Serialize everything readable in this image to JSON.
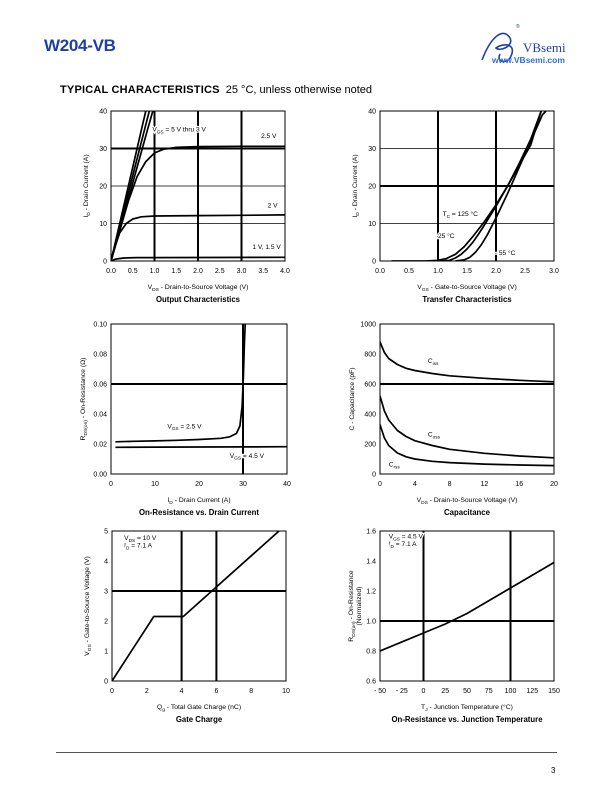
{
  "header": {
    "part_number": "W204-VB",
    "logo_text": "VBsemi",
    "logo_registered": "®",
    "website": "www.VBsemi.com"
  },
  "section": {
    "title": "TYPICAL CHARACTERISTICS",
    "subtitle": "25 °C, unless otherwise noted"
  },
  "page_number": "3",
  "chart_data": [
    {
      "id": "output",
      "type": "line",
      "title": "Output Characteristics",
      "xlabel": {
        "main": "V",
        "sub": "DS",
        "rest": " - Drain-to-Source Voltage (V)"
      },
      "ylabel": {
        "main": "I",
        "sub": "D",
        "rest": " - Drain Current (A)"
      },
      "xlim": [
        0,
        4
      ],
      "ylim": [
        0,
        40
      ],
      "xticks": [
        0,
        0.5,
        1,
        1.5,
        2,
        2.5,
        3,
        3.5,
        4
      ],
      "xtick_labels": [
        "0.0",
        "0.5",
        "1.0",
        "1.5",
        "2.0",
        "2.5",
        "3.0",
        "3.5",
        "4.0"
      ],
      "yticks": [
        0,
        10,
        20,
        30,
        40
      ],
      "ytick_labels": [
        "0",
        "10",
        "20",
        "30",
        "40"
      ],
      "series": [
        {
          "x": [
            0,
            0.2,
            0.4,
            0.6,
            0.7,
            0.8
          ],
          "y": [
            0,
            10,
            20,
            30,
            35,
            40
          ]
        },
        {
          "x": [
            0,
            0.22,
            0.44,
            0.66,
            0.77,
            0.88
          ],
          "y": [
            0,
            10,
            20,
            30,
            35,
            40
          ]
        },
        {
          "x": [
            0,
            0.24,
            0.48,
            0.72,
            0.84,
            0.96
          ],
          "y": [
            0,
            10,
            20,
            30,
            35,
            40
          ]
        },
        {
          "x": [
            0,
            0.2,
            0.4,
            0.6,
            0.8,
            1.0,
            1.2,
            1.5,
            2.0,
            3.0,
            4.0
          ],
          "y": [
            0,
            8,
            16,
            22.5,
            26.5,
            28.8,
            29.8,
            30.3,
            30.5,
            30.6,
            30.6
          ]
        },
        {
          "x": [
            0,
            0.1,
            0.2,
            0.35,
            0.5,
            0.7,
            1.0,
            2.0,
            3.0,
            4.0
          ],
          "y": [
            0,
            4,
            7.5,
            10,
            11.2,
            11.8,
            12,
            12.1,
            12.2,
            12.3
          ]
        },
        {
          "x": [
            0,
            0.1,
            0.3,
            0.6,
            1.0,
            4.0
          ],
          "y": [
            0,
            0.5,
            0.8,
            0.9,
            0.9,
            1.0
          ]
        }
      ],
      "annotations": [
        {
          "main": "V",
          "sub": "GS",
          "rest": " = 5 V thru 3 V",
          "x": 0.95,
          "y": 34.5
        },
        {
          "main": "2.5 V",
          "sub": "",
          "rest": "",
          "x": 3.45,
          "y": 32.8
        },
        {
          "main": "2 V",
          "sub": "",
          "rest": "",
          "x": 3.6,
          "y": 14.3
        },
        {
          "main": "1 V, 1.5 V",
          "sub": "",
          "rest": "",
          "x": 3.25,
          "y": 3.2
        }
      ]
    },
    {
      "id": "transfer",
      "type": "line",
      "title": "Transfer Characteristics",
      "xlabel": {
        "main": "V",
        "sub": "GS",
        "rest": " - Gate-to-Source Voltage (V)"
      },
      "ylabel": {
        "main": "I",
        "sub": "D",
        "rest": " - Drain Current (A)"
      },
      "xlim": [
        0,
        3
      ],
      "ylim": [
        0,
        40
      ],
      "xticks": [
        0,
        0.5,
        1,
        1.5,
        2,
        2.5,
        3
      ],
      "xtick_labels": [
        "0.0",
        "0.5",
        "1.0",
        "1.5",
        "2.0",
        "2.5",
        "3.0"
      ],
      "yticks": [
        0,
        10,
        20,
        30,
        40
      ],
      "ytick_labels": [
        "0",
        "10",
        "20",
        "30",
        "40"
      ],
      "series": [
        {
          "name": "T_C = 125 °C",
          "x": [
            0.2,
            0.8,
            1.0,
            1.15,
            1.3,
            1.45,
            1.6,
            1.8,
            2.0,
            2.2,
            2.4,
            2.6,
            2.78
          ],
          "y": [
            0,
            0,
            0.2,
            0.7,
            1.8,
            3.8,
            6.5,
            10.5,
            15,
            20,
            25.5,
            31,
            40
          ]
        },
        {
          "name": "25 °C",
          "x": [
            1.0,
            1.2,
            1.3,
            1.4,
            1.5,
            1.6,
            1.7,
            1.8,
            2.0,
            2.2,
            2.4,
            2.6,
            2.78
          ],
          "y": [
            0,
            0.2,
            0.8,
            1.8,
            3.2,
            5,
            7.2,
            9.6,
            14.6,
            20,
            26,
            32.5,
            40
          ]
        },
        {
          "name": "- 55 °C",
          "x": [
            1.3,
            1.45,
            1.55,
            1.65,
            1.75,
            1.85,
            2.0,
            2.2,
            2.4,
            2.6,
            2.8,
            2.86
          ],
          "y": [
            0,
            0.3,
            1,
            2.4,
            4.4,
            7,
            11.5,
            18,
            25,
            32,
            39,
            40
          ]
        }
      ],
      "annotations": [
        {
          "main": "T",
          "sub": "C",
          "rest": " = 125 °C",
          "x": 1.08,
          "y": 12
        },
        {
          "main": "25 °C",
          "sub": "",
          "rest": "",
          "x": 1.0,
          "y": 6.2
        },
        {
          "main": "- 55 °C",
          "sub": "",
          "rest": "",
          "x": 1.98,
          "y": 1.6
        }
      ]
    },
    {
      "id": "onres",
      "type": "line",
      "title": "On-Resistance vs. Drain Current",
      "xlabel": {
        "main": "I",
        "sub": "D",
        "rest": " - Drain Current (A)"
      },
      "ylabel": {
        "main": "R",
        "sub": "DS(on)",
        "rest": " - On-Resistance (Ω)"
      },
      "xlim": [
        0,
        40
      ],
      "ylim": [
        0,
        0.1
      ],
      "xticks": [
        0,
        10,
        20,
        30,
        40
      ],
      "xtick_labels": [
        "0",
        "10",
        "20",
        "30",
        "40"
      ],
      "yticks": [
        0,
        0.02,
        0.04,
        0.06,
        0.08,
        0.1
      ],
      "ytick_labels": [
        "0.00",
        "0.02",
        "0.04",
        "0.06",
        "0.08",
        "0.10"
      ],
      "series": [
        {
          "name": "V_GS = 2.5 V",
          "x": [
            1,
            5,
            10,
            15,
            20,
            25,
            27,
            28.5,
            29.3,
            29.8,
            30.1,
            30.3,
            30.5
          ],
          "y": [
            0.0215,
            0.0218,
            0.0221,
            0.0225,
            0.023,
            0.0238,
            0.0248,
            0.027,
            0.032,
            0.045,
            0.065,
            0.085,
            0.1
          ]
        },
        {
          "name": "V_GS = 4.5 V",
          "x": [
            1,
            10,
            20,
            30,
            40
          ],
          "y": [
            0.0178,
            0.0179,
            0.018,
            0.0181,
            0.0182
          ]
        }
      ],
      "annotations": [
        {
          "main": "V",
          "sub": "GS",
          "rest": " = 2.5 V",
          "x": 12.8,
          "y": 0.0305
        },
        {
          "main": "V",
          "sub": "GS",
          "rest": " = 4.5 V",
          "x": 27,
          "y": 0.0108
        }
      ]
    },
    {
      "id": "cap",
      "type": "line",
      "title": "Capacitance",
      "xlabel": {
        "main": "V",
        "sub": "DS",
        "rest": " - Drain-to-Source Voltage (V)"
      },
      "ylabel": {
        "main": "C - Capacitance (pF)",
        "sub": "",
        "rest": ""
      },
      "xlim": [
        0,
        20
      ],
      "ylim": [
        0,
        1000
      ],
      "xticks": [
        0,
        4,
        8,
        12,
        16,
        20
      ],
      "xtick_labels": [
        "0",
        "4",
        "8",
        "12",
        "16",
        "20"
      ],
      "yticks": [
        0,
        200,
        400,
        600,
        800,
        1000
      ],
      "ytick_labels": [
        "0",
        "200",
        "400",
        "600",
        "800",
        "1000"
      ],
      "series": [
        {
          "name": "C_iss",
          "x": [
            0,
            0.5,
            1,
            2,
            3,
            4,
            6,
            8,
            12,
            16,
            20
          ],
          "y": [
            880,
            810,
            770,
            730,
            705,
            690,
            670,
            655,
            638,
            625,
            615
          ]
        },
        {
          "name": "C_oss",
          "x": [
            0,
            0.5,
            1,
            2,
            3,
            4,
            6,
            8,
            12,
            16,
            20
          ],
          "y": [
            520,
            420,
            360,
            290,
            250,
            222,
            190,
            165,
            138,
            120,
            108
          ]
        },
        {
          "name": "C_rss",
          "x": [
            0,
            0.5,
            1,
            2,
            3,
            4,
            6,
            8,
            12,
            16,
            20
          ],
          "y": [
            330,
            240,
            190,
            140,
            115,
            100,
            85,
            76,
            66,
            60,
            56
          ]
        }
      ],
      "annotations": [
        {
          "main": "C",
          "sub": "iss",
          "rest": "",
          "x": 5.5,
          "y": 740
        },
        {
          "main": "C",
          "sub": "oss",
          "rest": "",
          "x": 5.5,
          "y": 250
        },
        {
          "main": "C",
          "sub": "rss",
          "rest": "",
          "x": 1.0,
          "y": 50
        }
      ]
    },
    {
      "id": "gate",
      "type": "line",
      "title": "Gate Charge",
      "xlabel": {
        "main": "Q",
        "sub": "g",
        "rest": " - Total Gate Charge (nC)"
      },
      "ylabel": {
        "main": "V",
        "sub": "GS",
        "rest": " - Gate-to-Source Voltage (V)"
      },
      "xlim": [
        0,
        10
      ],
      "ylim": [
        0,
        5
      ],
      "xticks": [
        0,
        2,
        4,
        6,
        8,
        10
      ],
      "xtick_labels": [
        "0",
        "2",
        "4",
        "6",
        "8",
        "10"
      ],
      "yticks": [
        0,
        1,
        2,
        3,
        4,
        5
      ],
      "ytick_labels": [
        "0",
        "1",
        "2",
        "3",
        "4",
        "5"
      ],
      "series": [
        {
          "x": [
            0,
            2.4,
            4.1,
            9.6
          ],
          "y": [
            0,
            2.15,
            2.15,
            5
          ]
        }
      ],
      "annotations": [
        {
          "main": "V",
          "sub": "DS",
          "rest": " = 10 V",
          "x": 0.7,
          "y": 4.7
        },
        {
          "main": "I",
          "sub": "D",
          "rest": " = 7.1 A",
          "x": 0.7,
          "y": 4.45
        }
      ]
    },
    {
      "id": "temp",
      "type": "line",
      "title": "On-Resistance vs. Junction Temperature",
      "xlabel": {
        "main": "T",
        "sub": "J",
        "rest": " - Junction Temperature (°C)"
      },
      "ylabel": {
        "main": "R",
        "sub": "DS(on)",
        "rest": " - On-Resistance",
        "line2": "(Normalized)"
      },
      "xlim": [
        -50,
        150
      ],
      "ylim": [
        0.6,
        1.6
      ],
      "xticks": [
        -50,
        -25,
        0,
        25,
        50,
        75,
        100,
        125,
        150
      ],
      "xtick_labels": [
        "- 50",
        "- 25",
        "0",
        "25",
        "50",
        "75",
        "100",
        "125",
        "150"
      ],
      "yticks": [
        0.6,
        0.8,
        1.0,
        1.2,
        1.4,
        1.6
      ],
      "ytick_labels": [
        "0.6",
        "0.8",
        "1.0",
        "1.2",
        "1.4",
        "1.6"
      ],
      "series": [
        {
          "x": [
            -50,
            0,
            25,
            50,
            100,
            150
          ],
          "y": [
            0.8,
            0.92,
            0.98,
            1.05,
            1.22,
            1.39
          ]
        }
      ],
      "annotations": [
        {
          "main": "V",
          "sub": "GS",
          "rest": " = 4.5 V",
          "x": -40,
          "y": 1.55
        },
        {
          "main": "I",
          "sub": "D",
          "rest": " = 7.1 A",
          "x": -40,
          "y": 1.5
        }
      ]
    }
  ]
}
